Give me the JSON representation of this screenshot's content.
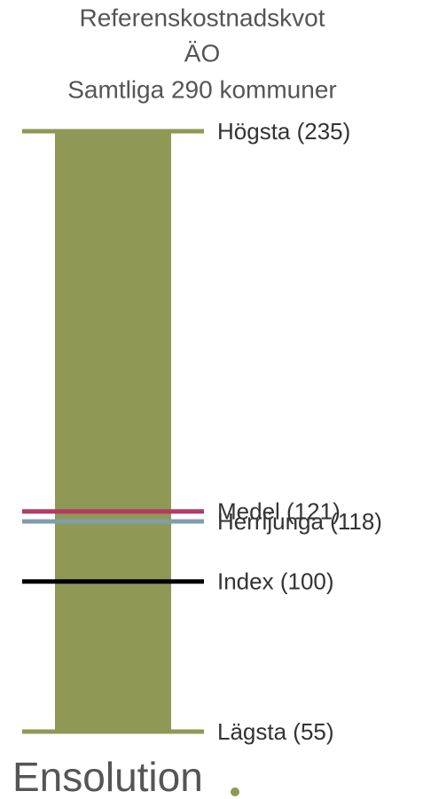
{
  "chart_data": {
    "type": "range",
    "title": [
      "Referenskostnadskvot",
      "ÄO",
      "Samtliga 290 kommuner"
    ],
    "values": [
      235,
      121,
      118,
      100,
      55
    ],
    "value_labels": [
      "Högsta (235)",
      "Medel (121)",
      "Herrljunga (118)",
      "Index (100)",
      "Lägsta (55)"
    ],
    "colors": [
      "#8f9955",
      "#b43a64",
      "#7f9eab",
      "#000000",
      "#8f9955"
    ],
    "color": "#8f9955",
    "ylim": [
      55,
      235
    ]
  },
  "footer": {
    "logo": "Ensolution"
  }
}
